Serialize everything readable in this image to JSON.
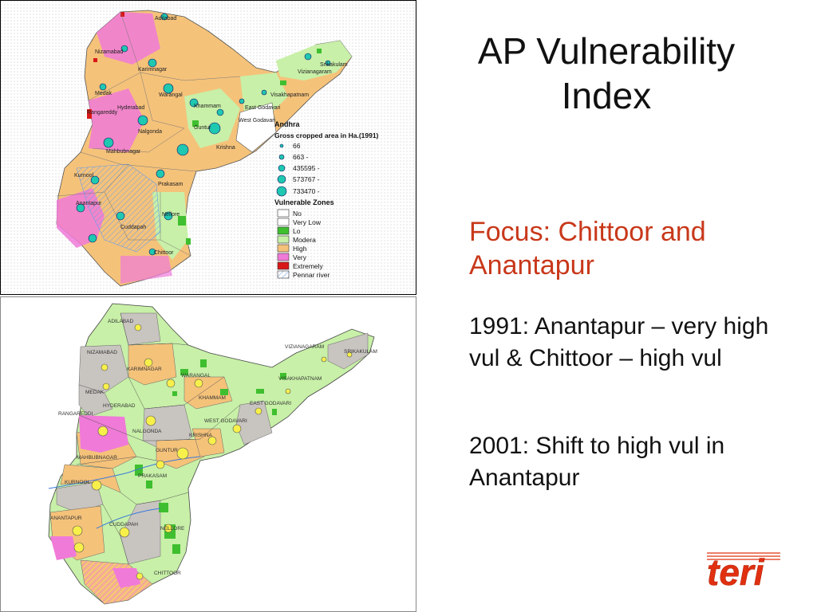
{
  "slide": {
    "title": "AP Vulnerability Index",
    "focus": "Focus: Chittoor and Anantapur",
    "points": [
      "1991: Anantapur – very high vul & Chittoor – high vul",
      "2001: Shift to high vul in Anantapur"
    ],
    "logo_text": "teri"
  },
  "map1": {
    "legend": {
      "heading": "Andhra",
      "cropped_title": "Gross cropped area in Ha.(1991)",
      "cropped_classes": [
        "66",
        "663 -",
        "435595 -",
        "573767 -",
        "733470 -"
      ],
      "zones_title": "Vulnerable Zones",
      "zones": [
        {
          "label": "No",
          "color": "#ffffff"
        },
        {
          "label": "Very Low",
          "color": "#ffffff"
        },
        {
          "label": "Lo",
          "color": "#3fbf2f"
        },
        {
          "label": "Modera",
          "color": "#c8f0a8"
        },
        {
          "label": "High",
          "color": "#f5c27a"
        },
        {
          "label": "Very",
          "color": "#f07ad8"
        },
        {
          "label": "Extremely",
          "color": "#d81818"
        },
        {
          "label": "Pennar river",
          "color": "#7ab0f0"
        }
      ]
    },
    "districts": [
      "Adilabad",
      "Nizamabad",
      "Karimnagar",
      "Medak",
      "Warangal",
      "Rangareddy",
      "Hyderabad",
      "Nalgonda",
      "Khammam",
      "East Godavari",
      "West Godavari",
      "Krishna",
      "Guntur",
      "Mahbubnagar",
      "Kurnool",
      "Prakasam",
      "Anantapur",
      "Cuddapah",
      "Nellore",
      "Chittoor",
      "Visakhapatnam",
      "Vizianagaram",
      "Srikakulam"
    ]
  },
  "map2": {
    "districts": [
      "ADILABAD",
      "NIZAMABAD",
      "KARIMNAGAR",
      "WARANGAL",
      "MEDAK",
      "HYDERABAD",
      "RANGAREDDI",
      "NALGONDA",
      "KHAMMAM",
      "EAST GODAVARI",
      "WEST GODAVARI",
      "KRISHNA",
      "GUNTUR",
      "MAHBUBNAGAR",
      "KURNOOL",
      "PRAKASAM",
      "ANANTAPUR",
      "CUDDAPAH",
      "NELLORE",
      "CHITTOOR",
      "VISAKHAPATNAM",
      "VIZIANAGARAM",
      "SRIKAKULAM"
    ]
  },
  "colors": {
    "focus_text": "#c8381a",
    "high": "#f5c27a",
    "very_high": "#f07ad8",
    "low": "#3fbf2f",
    "moderate": "#c8f0a8",
    "grey_district": "#c8c4c0",
    "logo": "#e03010"
  }
}
